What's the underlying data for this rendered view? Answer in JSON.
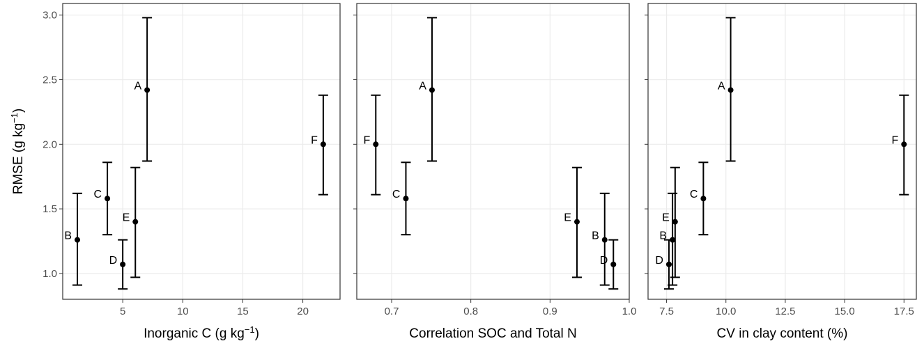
{
  "chart_data": [
    {
      "type": "scatter",
      "ylabel": "RMSE (g  kg",
      "ylabel_sup": "−1",
      "ylabel_tail": ")",
      "xlabel": "Inorganic C (g kg",
      "xlabel_sup": "−1",
      "xlabel_tail": ")",
      "point_labels": [
        "A",
        "B",
        "C",
        "D",
        "E",
        "F"
      ],
      "x": [
        7.03,
        1.22,
        3.72,
        5.0,
        6.05,
        21.7
      ],
      "values": [
        2.42,
        1.26,
        1.58,
        1.07,
        1.4,
        2.0
      ],
      "ymin": [
        1.87,
        0.91,
        1.3,
        0.88,
        0.97,
        1.61
      ],
      "ymax": [
        2.98,
        1.62,
        1.86,
        1.26,
        1.82,
        2.38
      ],
      "color": "#000000",
      "grid": true,
      "xlim": [
        0,
        23.1
      ],
      "xticks": [
        5,
        10,
        15,
        20
      ],
      "ylim": [
        0.8,
        3.09
      ],
      "yticks": [
        {
          "value": 1,
          "label": "1.0"
        },
        1.5,
        {
          "value": 2,
          "label": "2.0"
        },
        2.5,
        {
          "value": 3,
          "label": "3.0"
        }
      ]
    },
    {
      "type": "scatter",
      "xlabel": "Correlation SOC and Total N",
      "point_labels": [
        "A",
        "B",
        "C",
        "D",
        "E",
        "F"
      ],
      "x": [
        0.751,
        0.969,
        0.718,
        0.98,
        0.934,
        0.68
      ],
      "values": [
        2.42,
        1.26,
        1.58,
        1.07,
        1.4,
        2.0
      ],
      "ymin": [
        1.87,
        0.91,
        1.3,
        0.88,
        0.97,
        1.61
      ],
      "ymax": [
        2.98,
        1.62,
        1.86,
        1.26,
        1.82,
        2.38
      ],
      "color": "#000000",
      "grid": true,
      "xlim": [
        0.656,
        1.0
      ],
      "xticks": [
        0.7,
        0.8,
        0.9,
        {
          "value": 1,
          "label": "1.0"
        }
      ],
      "ylim": [
        0.8,
        3.09
      ],
      "yticks": [
        1,
        1.5,
        2,
        2.5,
        3
      ]
    },
    {
      "type": "scatter",
      "xlabel": "CV in clay content (%)",
      "point_labels": [
        "A",
        "B",
        "C",
        "D",
        "E",
        "F"
      ],
      "x": [
        10.2,
        7.75,
        9.05,
        7.6,
        7.86,
        17.5
      ],
      "values": [
        2.42,
        1.26,
        1.58,
        1.07,
        1.4,
        2.0
      ],
      "ymin": [
        1.87,
        0.91,
        1.3,
        0.88,
        0.97,
        1.61
      ],
      "ymax": [
        2.98,
        1.62,
        1.86,
        1.26,
        1.82,
        2.38
      ],
      "color": "#000000",
      "grid": true,
      "xlim": [
        6.72,
        18.02
      ],
      "xticks": [
        7.5,
        {
          "value": 10,
          "label": "10.0"
        },
        12.5,
        {
          "value": 15,
          "label": "15.0"
        },
        17.5
      ],
      "ylim": [
        0.8,
        3.09
      ],
      "yticks": [
        1,
        1.5,
        2,
        2.5,
        3
      ]
    }
  ]
}
